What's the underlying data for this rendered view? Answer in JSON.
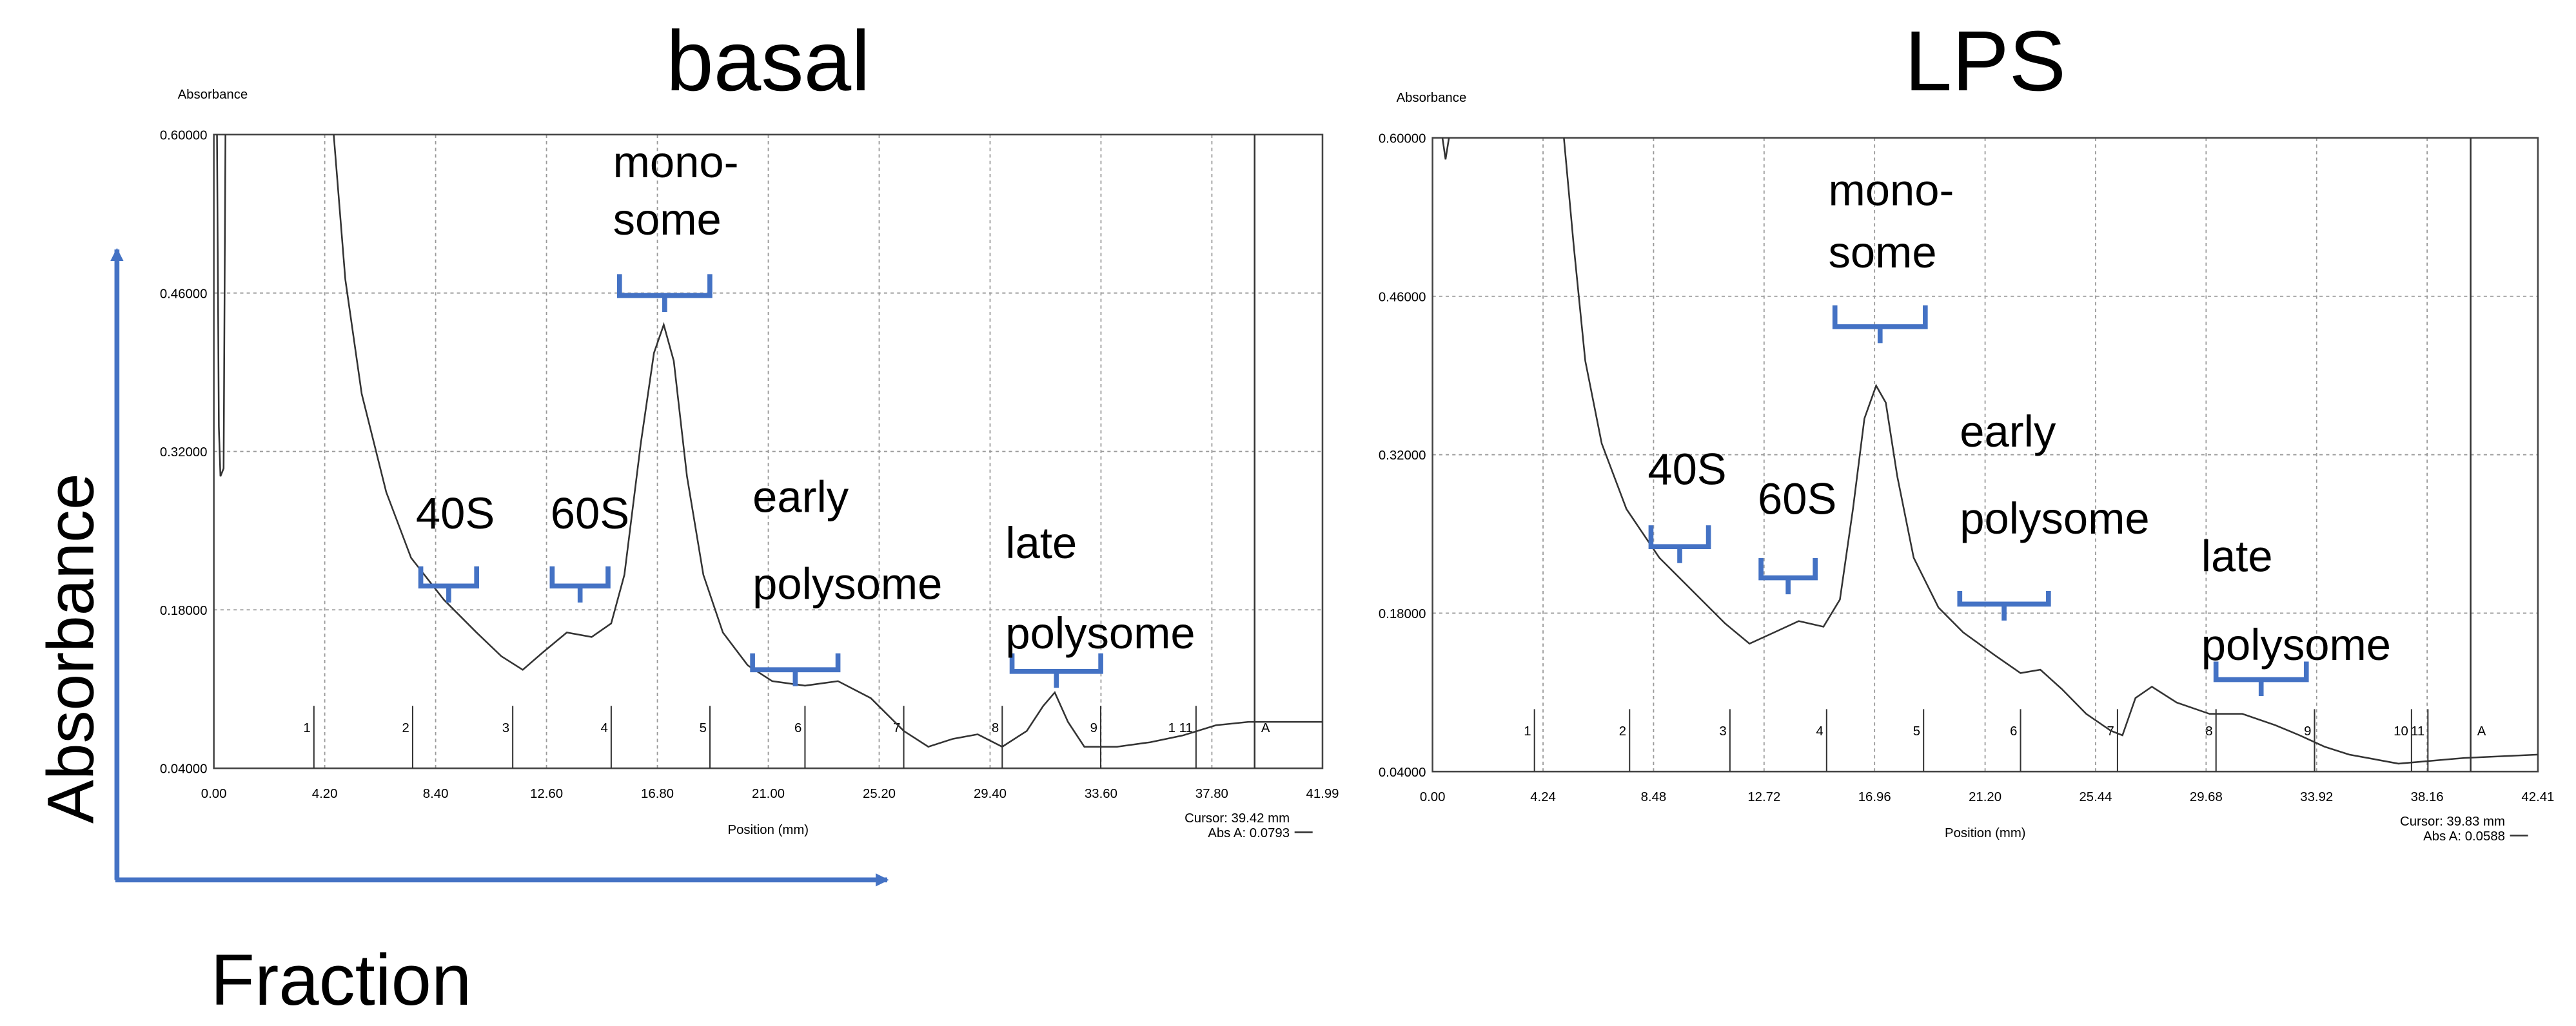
{
  "figure": {
    "y_label": "Absorbance",
    "x_label": "Fraction"
  },
  "chart_data": [
    {
      "type": "line",
      "title": "basal",
      "ylabel": "Absorbance",
      "xlabel": "Position (mm)",
      "xlim": [
        0,
        41.99
      ],
      "ylim": [
        0.04,
        0.6
      ],
      "xticks": [
        {
          "value": 0,
          "label": "0.00"
        },
        {
          "value": 4.2,
          "label": "4.20"
        },
        {
          "value": 8.4,
          "label": "8.40"
        },
        {
          "value": 12.6,
          "label": "12.60"
        },
        {
          "value": 16.8,
          "label": "16.80"
        },
        {
          "value": 21,
          "label": "21.00"
        },
        {
          "value": 25.2,
          "label": "25.20"
        },
        {
          "value": 29.4,
          "label": "29.40"
        },
        {
          "value": 33.6,
          "label": "33.60"
        },
        {
          "value": 37.8,
          "label": "37.80"
        },
        {
          "value": 41.99,
          "label": "41.99"
        }
      ],
      "yticks": [
        {
          "value": 0.04,
          "label": "0.04000"
        },
        {
          "value": 0.18,
          "label": "0.18000"
        },
        {
          "value": 0.32,
          "label": "0.32000"
        },
        {
          "value": 0.46,
          "label": "0.46000"
        },
        {
          "value": 0.6,
          "label": "0.60000"
        }
      ],
      "grid": true,
      "color": "#333333",
      "x": [
        0.12,
        0.19,
        0.25,
        0.37,
        0.44,
        null,
        4.54,
        4.98,
        5.6,
        6.53,
        7.47,
        8.71,
        9.95,
        10.89,
        11.7,
        12.44,
        13.37,
        14.31,
        15.05,
        15.55,
        16.17,
        16.67,
        17.04,
        17.42,
        17.92,
        18.54,
        19.28,
        20.22,
        21.15,
        22.39,
        23.64,
        24.88,
        26.13,
        27.06,
        27.99,
        28.93,
        29.86,
        30.79,
        31.41,
        31.85,
        32.35,
        32.97,
        34.21,
        35.46,
        36.7,
        37.95,
        39.19,
        41.99
      ],
      "values": [
        0.6,
        0.342,
        0.298,
        0.305,
        0.6,
        null,
        0.6,
        0.472,
        0.371,
        0.284,
        0.226,
        0.189,
        0.16,
        0.139,
        0.127,
        0.142,
        0.16,
        0.156,
        0.168,
        0.211,
        0.327,
        0.407,
        0.432,
        0.4,
        0.298,
        0.211,
        0.16,
        0.131,
        0.117,
        0.113,
        0.117,
        0.102,
        0.073,
        0.059,
        0.066,
        0.07,
        0.059,
        0.073,
        0.095,
        0.107,
        0.081,
        0.059,
        0.059,
        0.063,
        0.069,
        0.078,
        0.081,
        0.081
      ],
      "fractions": [
        {
          "label": "1",
          "x": 3.79
        },
        {
          "label": "2",
          "x": 7.53
        },
        {
          "label": "3",
          "x": 11.32
        },
        {
          "label": "4",
          "x": 15.05
        },
        {
          "label": "5",
          "x": 18.79
        },
        {
          "label": "6",
          "x": 22.39
        },
        {
          "label": "7",
          "x": 26.13
        },
        {
          "label": "8",
          "x": 29.86
        },
        {
          "label": "9",
          "x": 33.59
        },
        {
          "label": "1 11",
          "x": 37.2
        }
      ],
      "cursor": {
        "x": 39.42,
        "label": "A",
        "text": "Cursor: 39.42 mm",
        "abs_text": "Abs A: 0.0793"
      },
      "annotations": [
        "40S",
        "60S",
        "mono-",
        "some",
        "early",
        "polysome",
        "late",
        "polysome"
      ]
    },
    {
      "type": "line",
      "title": "LPS",
      "ylabel": "Absorbance",
      "xlabel": "Position (mm)",
      "xlim": [
        0,
        42.41
      ],
      "ylim": [
        0.04,
        0.6
      ],
      "xticks": [
        {
          "value": 0,
          "label": "0.00"
        },
        {
          "value": 4.24,
          "label": "4.24"
        },
        {
          "value": 8.48,
          "label": "8.48"
        },
        {
          "value": 12.72,
          "label": "12.72"
        },
        {
          "value": 16.96,
          "label": "16.96"
        },
        {
          "value": 21.2,
          "label": "21.20"
        },
        {
          "value": 25.44,
          "label": "25.44"
        },
        {
          "value": 29.68,
          "label": "29.68"
        },
        {
          "value": 33.92,
          "label": "33.92"
        },
        {
          "value": 38.16,
          "label": "38.16"
        },
        {
          "value": 42.41,
          "label": "42.41"
        }
      ],
      "yticks": [
        {
          "value": 0.04,
          "label": "0.04000"
        },
        {
          "value": 0.18,
          "label": "0.18000"
        },
        {
          "value": 0.32,
          "label": "0.32000"
        },
        {
          "value": 0.46,
          "label": "0.46000"
        },
        {
          "value": 0.6,
          "label": "0.60000"
        }
      ],
      "grid": true,
      "color": "#333333",
      "x": [
        0.38,
        0.5,
        0.63,
        null,
        5.04,
        5.42,
        5.86,
        6.49,
        7.44,
        8.7,
        9.96,
        11.22,
        12.16,
        13.11,
        14.05,
        15.0,
        15.63,
        16.13,
        16.57,
        17.02,
        17.39,
        17.83,
        18.46,
        19.41,
        20.36,
        21.62,
        22.56,
        23.32,
        24.14,
        25.08,
        26.03,
        26.47,
        26.97,
        27.6,
        28.55,
        29.81,
        31.07,
        32.33,
        33.27,
        34.22,
        35.17,
        37.06,
        39.58,
        42.41
      ],
      "values": [
        0.6,
        0.581,
        0.6,
        null,
        0.6,
        0.504,
        0.403,
        0.33,
        0.272,
        0.229,
        0.2,
        0.171,
        0.153,
        0.163,
        0.173,
        0.168,
        0.192,
        0.272,
        0.352,
        0.381,
        0.366,
        0.301,
        0.229,
        0.185,
        0.163,
        0.142,
        0.127,
        0.13,
        0.113,
        0.091,
        0.076,
        0.072,
        0.105,
        0.115,
        0.101,
        0.091,
        0.091,
        0.081,
        0.072,
        0.062,
        0.055,
        0.047,
        0.052,
        0.055
      ],
      "fractions": [
        {
          "label": "1",
          "x": 3.91
        },
        {
          "label": "2",
          "x": 7.56
        },
        {
          "label": "3",
          "x": 11.41
        },
        {
          "label": "4",
          "x": 15.12
        },
        {
          "label": "5",
          "x": 18.84
        },
        {
          "label": "6",
          "x": 22.56
        },
        {
          "label": "7",
          "x": 26.28
        },
        {
          "label": "8",
          "x": 30.06
        },
        {
          "label": "9",
          "x": 33.84
        },
        {
          "label": "10",
          "x": 37.56
        },
        {
          "label": "11",
          "x": 38.19
        }
      ],
      "cursor": {
        "x": 39.83,
        "label": "A",
        "text": "Cursor: 39.83 mm",
        "abs_text": "Abs A: 0.0588"
      },
      "annotations": [
        "40S",
        "60S",
        "mono-",
        "some",
        "early",
        "polysome",
        "late",
        "polysome"
      ]
    }
  ]
}
